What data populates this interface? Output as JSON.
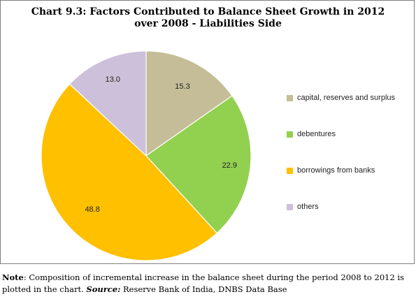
{
  "chart_data": {
    "type": "pie",
    "title_line1": "Chart 9.3: Factors Contributed to Balance Sheet Growth in 2012",
    "title_line2": "over 2008 - Liabilities Side",
    "categories": [
      "capital, reserves and surplus",
      "debentures",
      "borrowings from banks",
      "others"
    ],
    "values": [
      15.3,
      22.9,
      48.8,
      13.0
    ],
    "value_labels": [
      "15.3",
      "22.9",
      "48.8",
      "13.0"
    ],
    "colors": [
      "#c4bd97",
      "#92d050",
      "#ffc000",
      "#ccc0da"
    ],
    "legend_placement": "right"
  },
  "note": {
    "label": "Note",
    "text": ": Composition of incremental increase in the balance sheet during the period 2008 to 2012 is plotted in the chart. ",
    "source_label": "Source:",
    "source_text": " Reserve Bank of India, DNBS Data Base"
  }
}
